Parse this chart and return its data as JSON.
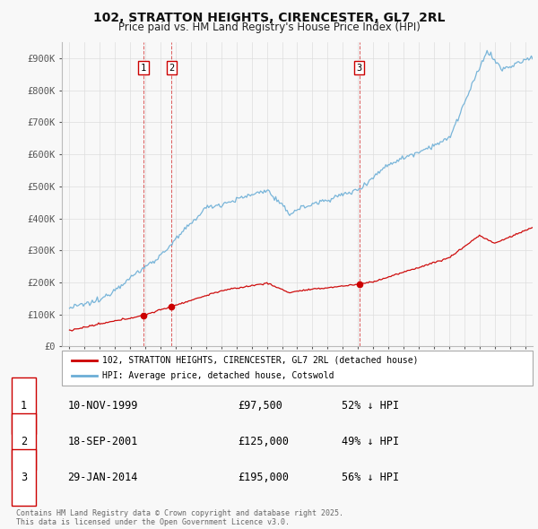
{
  "title": "102, STRATTON HEIGHTS, CIRENCESTER, GL7  2RL",
  "subtitle": "Price paid vs. HM Land Registry's House Price Index (HPI)",
  "legend_line1": "102, STRATTON HEIGHTS, CIRENCESTER, GL7 2RL (detached house)",
  "legend_line2": "HPI: Average price, detached house, Cotswold",
  "footer": "Contains HM Land Registry data © Crown copyright and database right 2025.\nThis data is licensed under the Open Government Licence v3.0.",
  "transactions": [
    {
      "num": 1,
      "date": "10-NOV-1999",
      "price": 97500,
      "hpi_rel": "52% ↓ HPI",
      "year": 1999.87
    },
    {
      "num": 2,
      "date": "18-SEP-2001",
      "price": 125000,
      "hpi_rel": "49% ↓ HPI",
      "year": 2001.72
    },
    {
      "num": 3,
      "date": "29-JAN-2014",
      "price": 195000,
      "hpi_rel": "56% ↓ HPI",
      "year": 2014.08
    }
  ],
  "ylim": [
    0,
    950000
  ],
  "yticks": [
    0,
    100000,
    200000,
    300000,
    400000,
    500000,
    600000,
    700000,
    800000,
    900000
  ],
  "ytick_labels": [
    "£0",
    "£100K",
    "£200K",
    "£300K",
    "£400K",
    "£500K",
    "£600K",
    "£700K",
    "£800K",
    "£900K"
  ],
  "xlim": [
    1994.5,
    2025.5
  ],
  "red_color": "#cc0000",
  "blue_color": "#6baed6",
  "background_color": "#f8f8f8",
  "grid_color": "#dddddd",
  "title_fontsize": 10,
  "subtitle_fontsize": 8.5
}
